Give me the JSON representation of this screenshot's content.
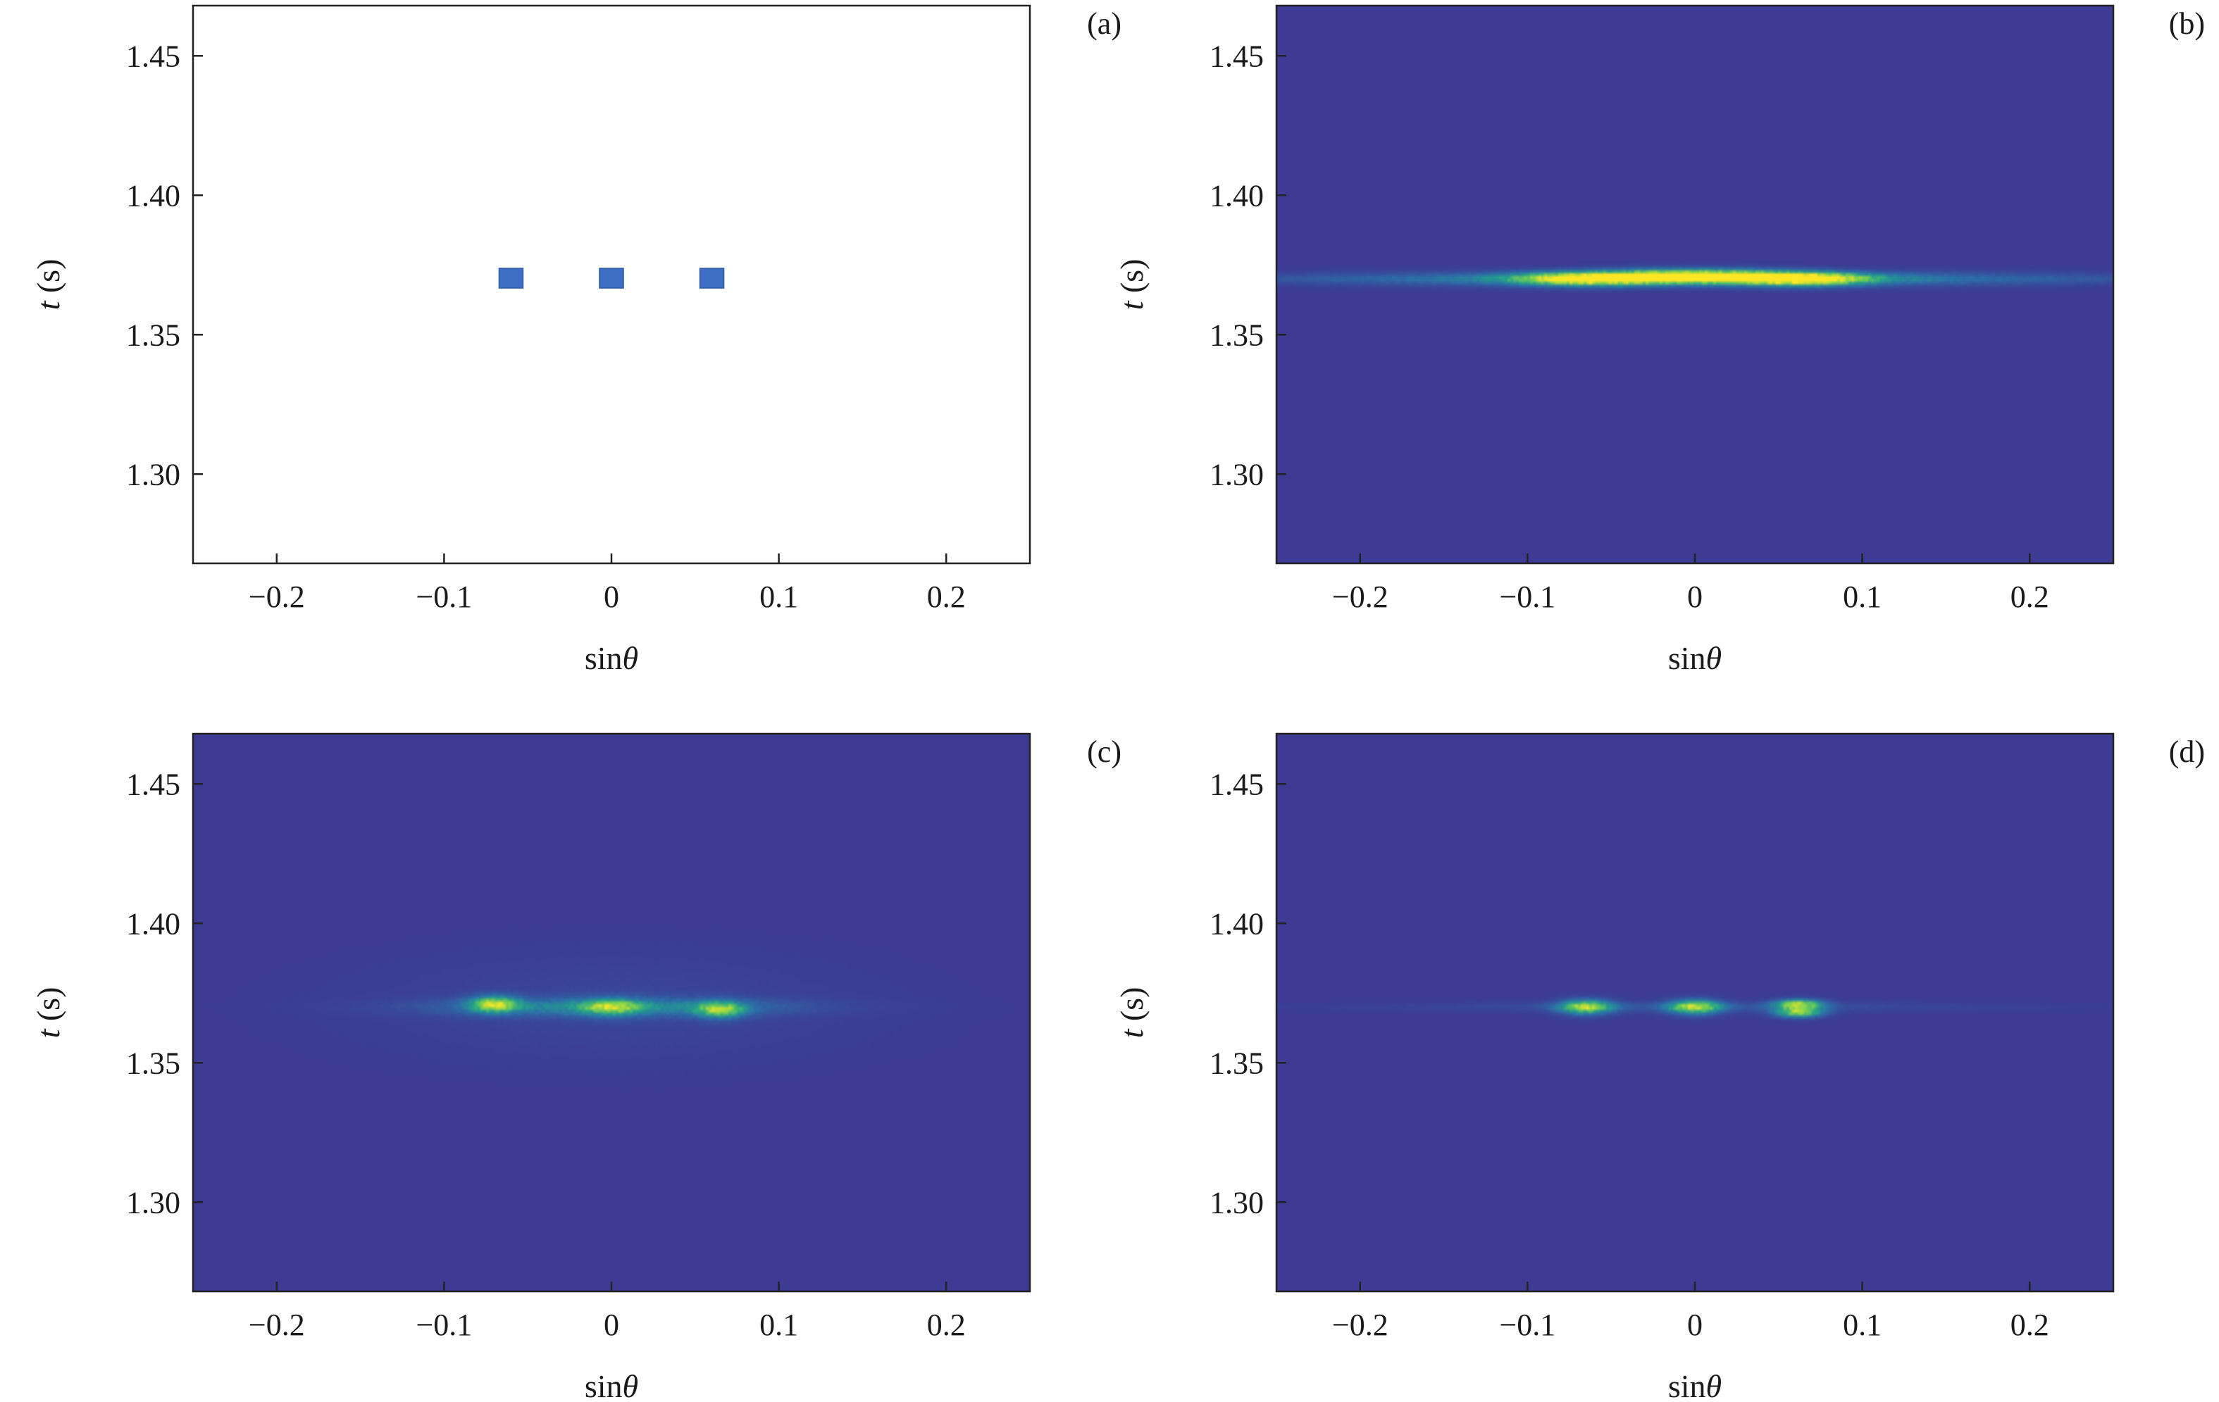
{
  "colors": {
    "heatmap_background": "#3d3b94",
    "marker": "#3d6fc4",
    "colormap": [
      "#3d3b94",
      "#2c6fa8",
      "#23a38a",
      "#7fd34e",
      "#fde725"
    ]
  },
  "chart_data": [
    {
      "type": "scatter",
      "panel_label": "(a)",
      "xlabel_base": "sin",
      "xlabel_symbol": "θ",
      "ylabel_var": "t",
      "ylabel_unit": " (s)",
      "xlim": [
        -0.25,
        0.25
      ],
      "ylim": [
        1.268,
        1.468
      ],
      "xticks": [
        -0.2,
        -0.1,
        0,
        0.1,
        0.2
      ],
      "xtick_labels": [
        "−0.2",
        "−0.1",
        "0",
        "0.1",
        "0.2"
      ],
      "yticks": [
        1.3,
        1.35,
        1.4,
        1.45
      ],
      "ytick_labels": [
        "1.30",
        "1.35",
        "1.40",
        "1.45"
      ],
      "marker": "square",
      "points": [
        {
          "x": -0.06,
          "y": 1.37
        },
        {
          "x": 0.0,
          "y": 1.37
        },
        {
          "x": 0.06,
          "y": 1.37
        }
      ]
    },
    {
      "type": "heatmap",
      "panel_label": "(b)",
      "xlabel_base": "sin",
      "xlabel_symbol": "θ",
      "ylabel_var": "t",
      "ylabel_unit": " (s)",
      "xlim": [
        -0.25,
        0.25
      ],
      "ylim": [
        1.268,
        1.468
      ],
      "xticks": [
        -0.2,
        -0.1,
        0,
        0.1,
        0.2
      ],
      "xtick_labels": [
        "−0.2",
        "−0.1",
        "0",
        "0.1",
        "0.2"
      ],
      "yticks": [
        1.3,
        1.35,
        1.4,
        1.45
      ],
      "ytick_labels": [
        "1.30",
        "1.35",
        "1.40",
        "1.45"
      ],
      "hotspots": [
        {
          "x": -0.065,
          "y": 1.37,
          "sx": 0.028,
          "sy": 0.0016,
          "v": 0.85
        },
        {
          "x": 0.0,
          "y": 1.371,
          "sx": 0.035,
          "sy": 0.0016,
          "v": 1.0
        },
        {
          "x": 0.065,
          "y": 1.37,
          "sx": 0.026,
          "sy": 0.0016,
          "v": 0.9
        },
        {
          "x": 0.0,
          "y": 1.37,
          "sx": 0.14,
          "sy": 0.0018,
          "v": 0.35
        },
        {
          "x": 0.0,
          "y": 1.37,
          "sx": 0.25,
          "sy": 0.0012,
          "v": 0.1
        }
      ]
    },
    {
      "type": "heatmap",
      "panel_label": "(c)",
      "xlabel_base": "sin",
      "xlabel_symbol": "θ",
      "ylabel_var": "t",
      "ylabel_unit": " (s)",
      "xlim": [
        -0.25,
        0.25
      ],
      "ylim": [
        1.268,
        1.468
      ],
      "xticks": [
        -0.2,
        -0.1,
        0,
        0.1,
        0.2
      ],
      "xtick_labels": [
        "−0.2",
        "−0.1",
        "0",
        "0.1",
        "0.2"
      ],
      "yticks": [
        1.3,
        1.35,
        1.4,
        1.45
      ],
      "ytick_labels": [
        "1.30",
        "1.35",
        "1.40",
        "1.45"
      ],
      "hotspots": [
        {
          "x": -0.07,
          "y": 1.371,
          "sx": 0.01,
          "sy": 0.002,
          "v": 0.75
        },
        {
          "x": 0.0,
          "y": 1.37,
          "sx": 0.012,
          "sy": 0.002,
          "v": 0.55
        },
        {
          "x": 0.065,
          "y": 1.369,
          "sx": 0.01,
          "sy": 0.002,
          "v": 0.65
        },
        {
          "x": 0.0,
          "y": 1.37,
          "sx": 0.07,
          "sy": 0.0022,
          "v": 0.35
        },
        {
          "x": 0.0,
          "y": 1.37,
          "sx": 0.09,
          "sy": 0.012,
          "v": 0.06
        }
      ]
    },
    {
      "type": "heatmap",
      "panel_label": "(d)",
      "xlabel_base": "sin",
      "xlabel_symbol": "θ",
      "ylabel_var": "t",
      "ylabel_unit": " (s)",
      "xlim": [
        -0.25,
        0.25
      ],
      "ylim": [
        1.268,
        1.468
      ],
      "xticks": [
        -0.2,
        -0.1,
        0,
        0.1,
        0.2
      ],
      "xtick_labels": [
        "−0.2",
        "−0.1",
        "0",
        "0.1",
        "0.2"
      ],
      "yticks": [
        1.3,
        1.35,
        1.4,
        1.45
      ],
      "ytick_labels": [
        "1.30",
        "1.35",
        "1.40",
        "1.45"
      ],
      "hotspots": [
        {
          "x": -0.065,
          "y": 1.37,
          "sx": 0.011,
          "sy": 0.0018,
          "v": 0.8
        },
        {
          "x": 0.0,
          "y": 1.37,
          "sx": 0.011,
          "sy": 0.0018,
          "v": 0.8
        },
        {
          "x": 0.062,
          "y": 1.371,
          "sx": 0.01,
          "sy": 0.0012,
          "v": 0.8
        },
        {
          "x": 0.062,
          "y": 1.368,
          "sx": 0.01,
          "sy": 0.0012,
          "v": 0.75
        },
        {
          "x": 0.0,
          "y": 1.37,
          "sx": 0.12,
          "sy": 0.0012,
          "v": 0.12
        }
      ]
    }
  ]
}
